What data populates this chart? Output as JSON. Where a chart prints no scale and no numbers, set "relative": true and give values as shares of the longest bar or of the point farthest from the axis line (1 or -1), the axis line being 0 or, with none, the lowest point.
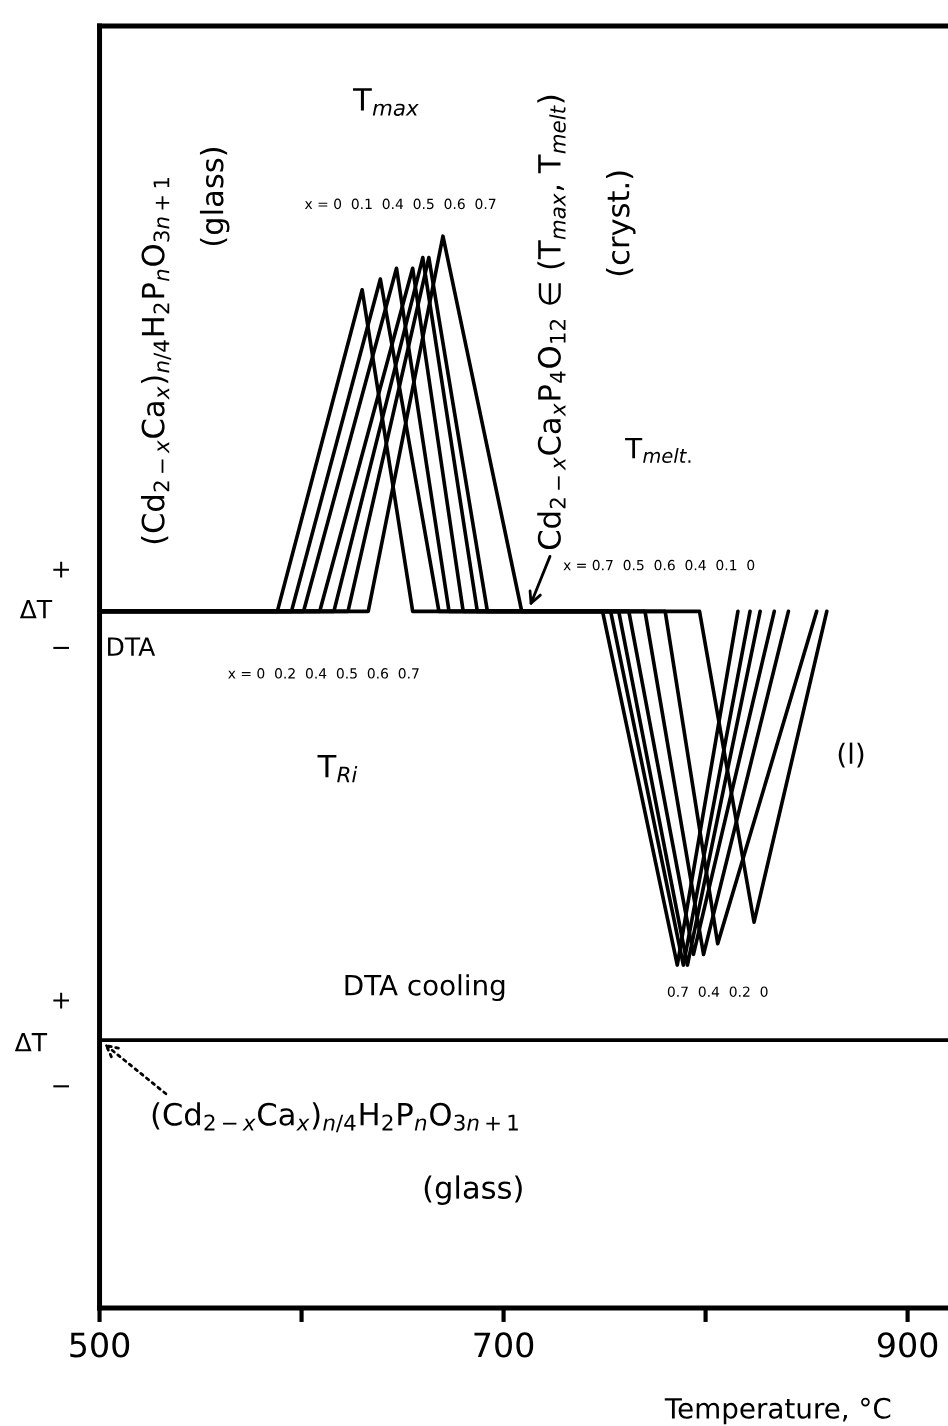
{
  "chart_data": {
    "type": "line",
    "relative": true,
    "xlim": [
      500,
      920
    ],
    "xticks": [
      500,
      {
        "value": 600,
        "label": null
      },
      700,
      {
        "value": 800,
        "label": null
      },
      900
    ],
    "tick_labels": "x",
    "xlabel": "Temperature, °C",
    "ylabel": "ΔT",
    "series": [
      {
        "color": "#000000",
        "x": [
          500,
          588,
          630,
          655,
          797,
          824,
          860
        ],
        "values": [
          0.65,
          0.65,
          0.95,
          0.65,
          0.65,
          0.36,
          0.65
        ]
      },
      {
        "color": "#000000",
        "x": [
          500,
          595,
          639,
          668,
          780,
          806,
          855
        ],
        "values": [
          0.65,
          0.65,
          0.96,
          0.65,
          0.65,
          0.34,
          0.65
        ]
      },
      {
        "color": "#000000",
        "x": [
          500,
          601,
          647,
          673,
          770,
          799,
          841
        ],
        "values": [
          0.65,
          0.65,
          0.97,
          0.65,
          0.65,
          0.33,
          0.65
        ]
      },
      {
        "color": "#000000",
        "x": [
          500,
          609,
          655,
          680,
          762,
          794,
          834
        ],
        "values": [
          0.65,
          0.65,
          0.97,
          0.65,
          0.65,
          0.33,
          0.65
        ]
      },
      {
        "color": "#000000",
        "x": [
          500,
          616,
          660,
          687,
          757,
          791,
          827
        ],
        "values": [
          0.65,
          0.65,
          0.98,
          0.65,
          0.65,
          0.32,
          0.65
        ]
      },
      {
        "color": "#000000",
        "x": [
          500,
          623,
          663,
          692,
          753,
          789,
          822
        ],
        "values": [
          0.65,
          0.65,
          0.98,
          0.65,
          0.65,
          0.32,
          0.65
        ]
      },
      {
        "color": "#000000",
        "x": [
          500,
          633,
          670,
          709,
          749,
          786,
          816
        ],
        "values": [
          0.65,
          0.65,
          1,
          0.65,
          0.65,
          0.32,
          0.65
        ]
      },
      {
        "color": "#000000",
        "x": [
          500,
          920
        ],
        "values": [
          0.25,
          0.25
        ]
      }
    ],
    "annotations": [
      "(Cd$_{2−x}$Ca$_{x}$)$_{n/4}$H$_{2}$P$_{n}$O$_{3n+1}$",
      "(glass)",
      "Cd$_{2−x}$Ca$_{x}$P$_{4}$O$_{12}$ ∈ (T$_{max}$, T$_{melt}$)",
      "(cryst.)",
      "T$_{max}$",
      "T$_{melt.}$",
      "T$_{Ri}$",
      "DTA",
      "(l)",
      "x = 0  0.1  0.4  0.5  0.6  0.7",
      "x = 0  0.2  0.4  0.5  0.6  0.7",
      "x = 0.7  0.5  0.6  0.4  0.1  0",
      "0.7  0.4  0.2  0",
      "DTA cooling",
      "+",
      "−",
      "(Cd$_{2−x}$Ca$_{x}$)$_{n/4}$H$_{2}$P$_{n}$O$_{3n+1}$",
      "(glass)",
      "ΔT",
      "+",
      "−"
    ]
  }
}
